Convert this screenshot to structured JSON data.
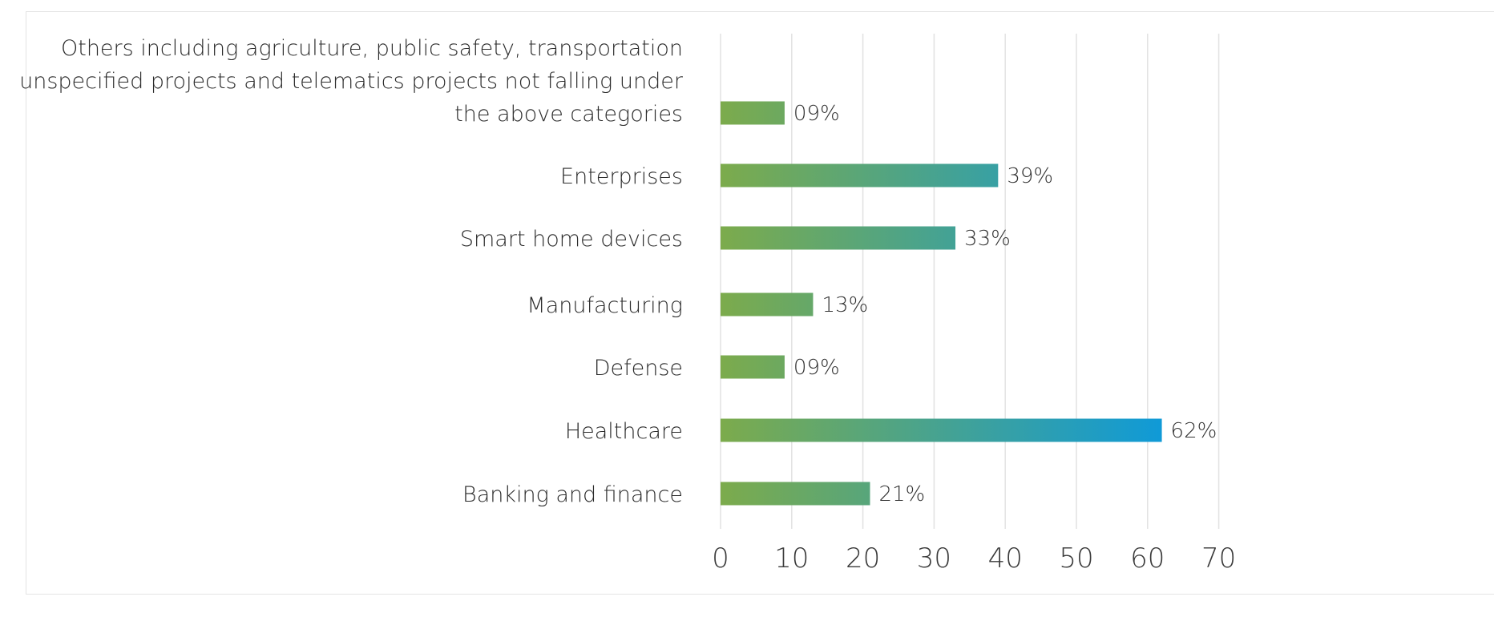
{
  "chart_data": {
    "type": "bar",
    "orientation": "horizontal",
    "categories": [
      "Others including agriculture, public safety, transportation unspecified projects and telematics projects not falling under the above categories",
      "Enterprises",
      "Smart home devices",
      "Manufacturing",
      "Defense",
      "Healthcare",
      "Banking and finance"
    ],
    "category_lines": [
      [
        "Others including agriculture, public safety, transportation",
        "unspecified projects and telematics projects not falling under",
        "the above categories"
      ],
      [
        "Enterprises"
      ],
      [
        "Smart home devices"
      ],
      [
        "Manufacturing"
      ],
      [
        "Defense"
      ],
      [
        "Healthcare"
      ],
      [
        "Banking and finance"
      ]
    ],
    "values": [
      9,
      39,
      33,
      13,
      9,
      62,
      21
    ],
    "value_labels": [
      "09%",
      "39%",
      "33%",
      "13%",
      "09%",
      "62%",
      "21%"
    ],
    "xlim": [
      0,
      70
    ],
    "xticks": [
      0,
      10,
      20,
      30,
      40,
      50,
      60,
      70
    ],
    "title": "",
    "xlabel": "",
    "ylabel": "",
    "grid": true,
    "legend": "none",
    "colors": {
      "bar_start": "#7cab4c",
      "bar_end": "#0f9ad8",
      "grid": "#e2e2e2",
      "text": "#2b2b2b"
    }
  }
}
